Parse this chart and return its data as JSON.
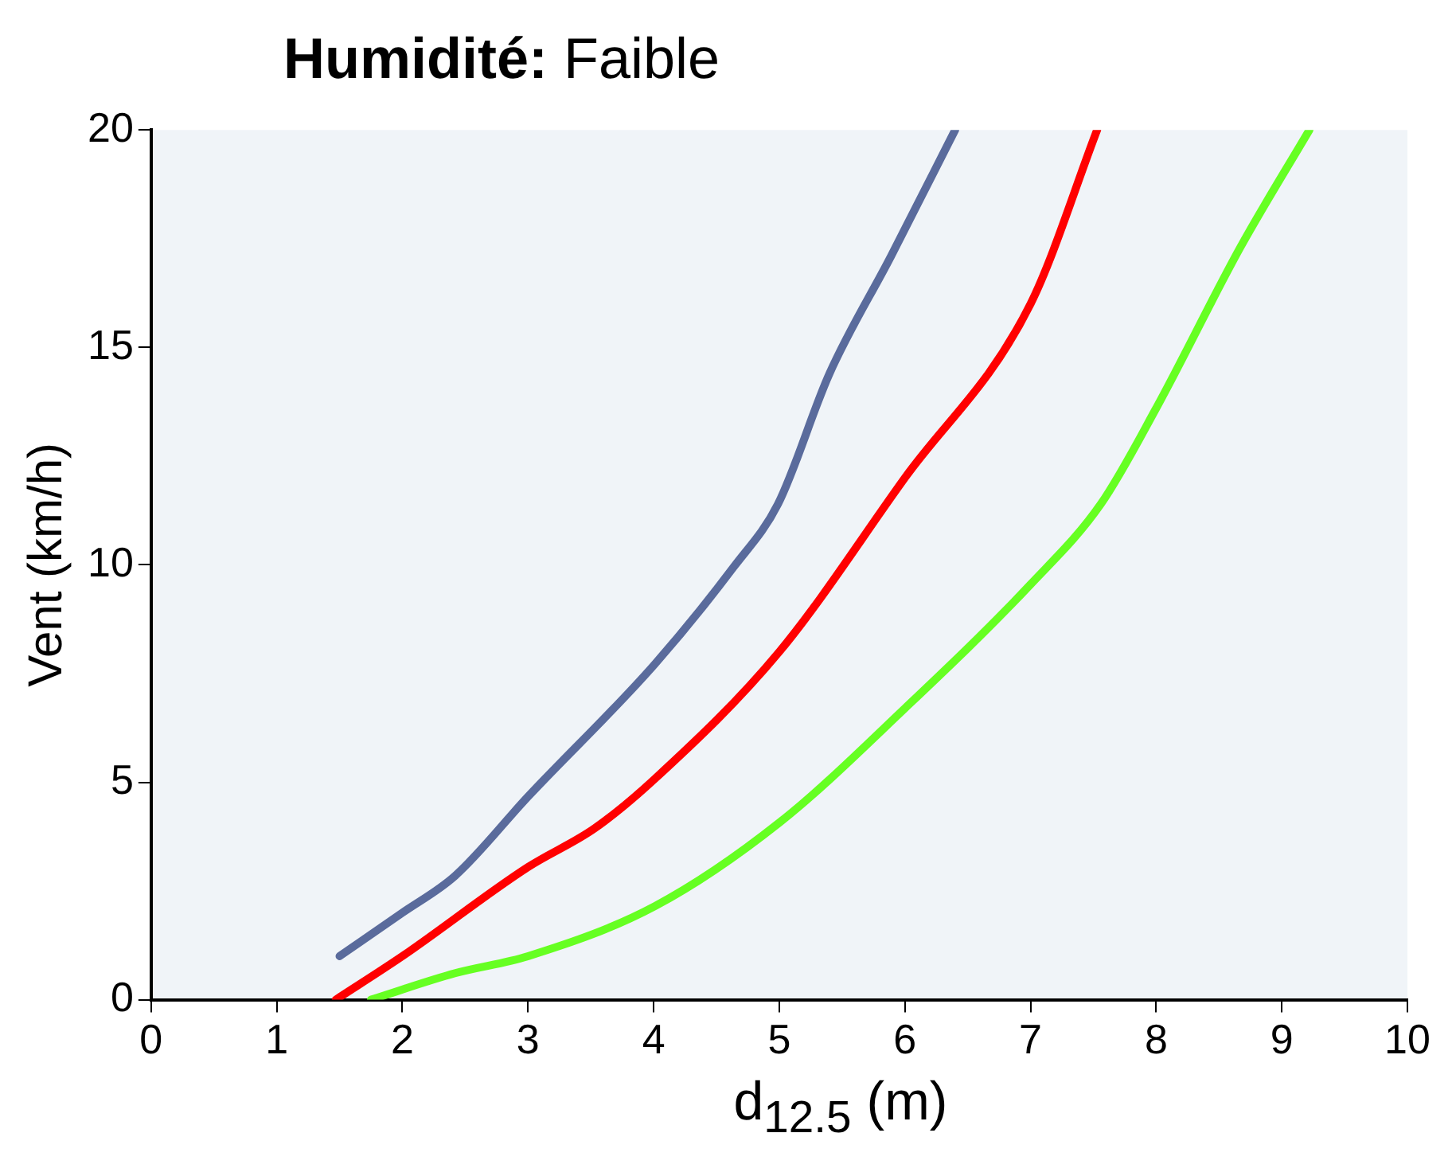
{
  "chart_data": {
    "type": "line",
    "title": "Humidité: Faible",
    "xlabel": "d$_{12.5}$ (m)",
    "ylabel": "Vent (km/h)",
    "xlim": [
      0,
      10
    ],
    "xticks": [
      0,
      1,
      2,
      3,
      4,
      5,
      6,
      7,
      8,
      9,
      10
    ],
    "ylim": [
      0,
      20
    ],
    "yticks": [
      0,
      5,
      10,
      15,
      20
    ],
    "grid": false,
    "legend": false,
    "marker": "none",
    "line_style": "solid",
    "series": [
      {
        "color": "#5a6b9c",
        "x": [
          1.5,
          2.0,
          2.42,
          3.0,
          4.01,
          4.64,
          4.99,
          5.4,
          5.89,
          6.4
        ],
        "values": [
          1.0,
          2.0,
          2.85,
          4.67,
          7.72,
          9.96,
          11.4,
          14.4,
          17.1,
          20
        ]
      },
      {
        "color": "#ff0000",
        "x": [
          1.47,
          2.0,
          3.0,
          3.53,
          4.01,
          5.0,
          6.0,
          7.0,
          7.53
        ],
        "values": [
          0,
          1.0,
          3.05,
          3.94,
          5.08,
          8.0,
          12.0,
          16.0,
          20
        ]
      },
      {
        "color": "#66ff22",
        "x": [
          1.75,
          2.42,
          3.0,
          4.01,
          5.0,
          6.0,
          7.0,
          7.56,
          8.0,
          8.67,
          9.22
        ],
        "values": [
          0,
          0.61,
          1.0,
          2.15,
          4.07,
          6.7,
          9.55,
          11.4,
          13.6,
          17.3,
          20
        ]
      }
    ]
  }
}
